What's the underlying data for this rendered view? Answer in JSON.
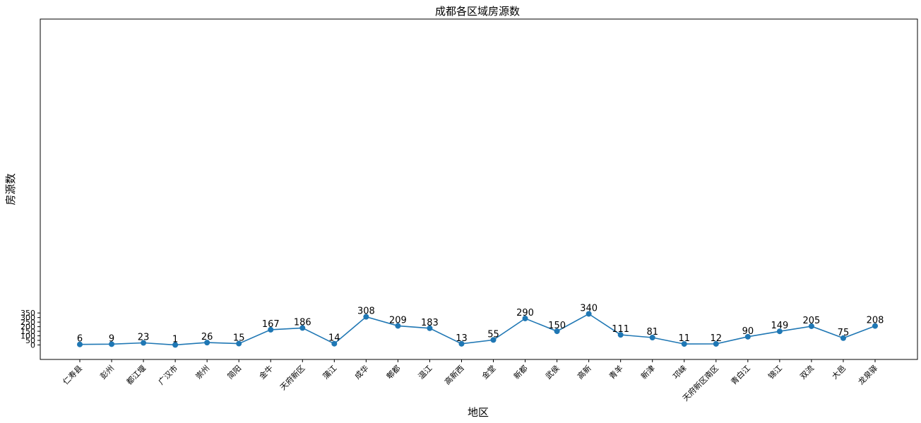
{
  "chart_data": {
    "type": "line",
    "title": "成都各区域房源数",
    "xlabel": "地区",
    "ylabel": "房源数",
    "categories": [
      "仁寿县",
      "彭州",
      "都江堰",
      "广汉市",
      "崇州",
      "简阳",
      "金牛",
      "天府新区",
      "蒲江",
      "成华",
      "郫都",
      "温江",
      "高新西",
      "金堂",
      "新都",
      "武侯",
      "高新",
      "青羊",
      "新津",
      "邛崃",
      "天府新区南区",
      "青白江",
      "锦江",
      "双流",
      "大邑",
      "龙泉驿"
    ],
    "series": [
      {
        "values": [
          6,
          9,
          23,
          1,
          26,
          15,
          167,
          186,
          14,
          308,
          209,
          183,
          13,
          55,
          290,
          150,
          340,
          111,
          81,
          11,
          12,
          90,
          149,
          205,
          75,
          208
        ],
        "color": "#1f77b4"
      }
    ],
    "ylim": [
      -15,
      355
    ],
    "yticks": [
      0,
      50,
      100,
      150,
      200,
      250,
      300,
      350
    ],
    "grid": false,
    "marker": "circle",
    "data_labels": true
  }
}
